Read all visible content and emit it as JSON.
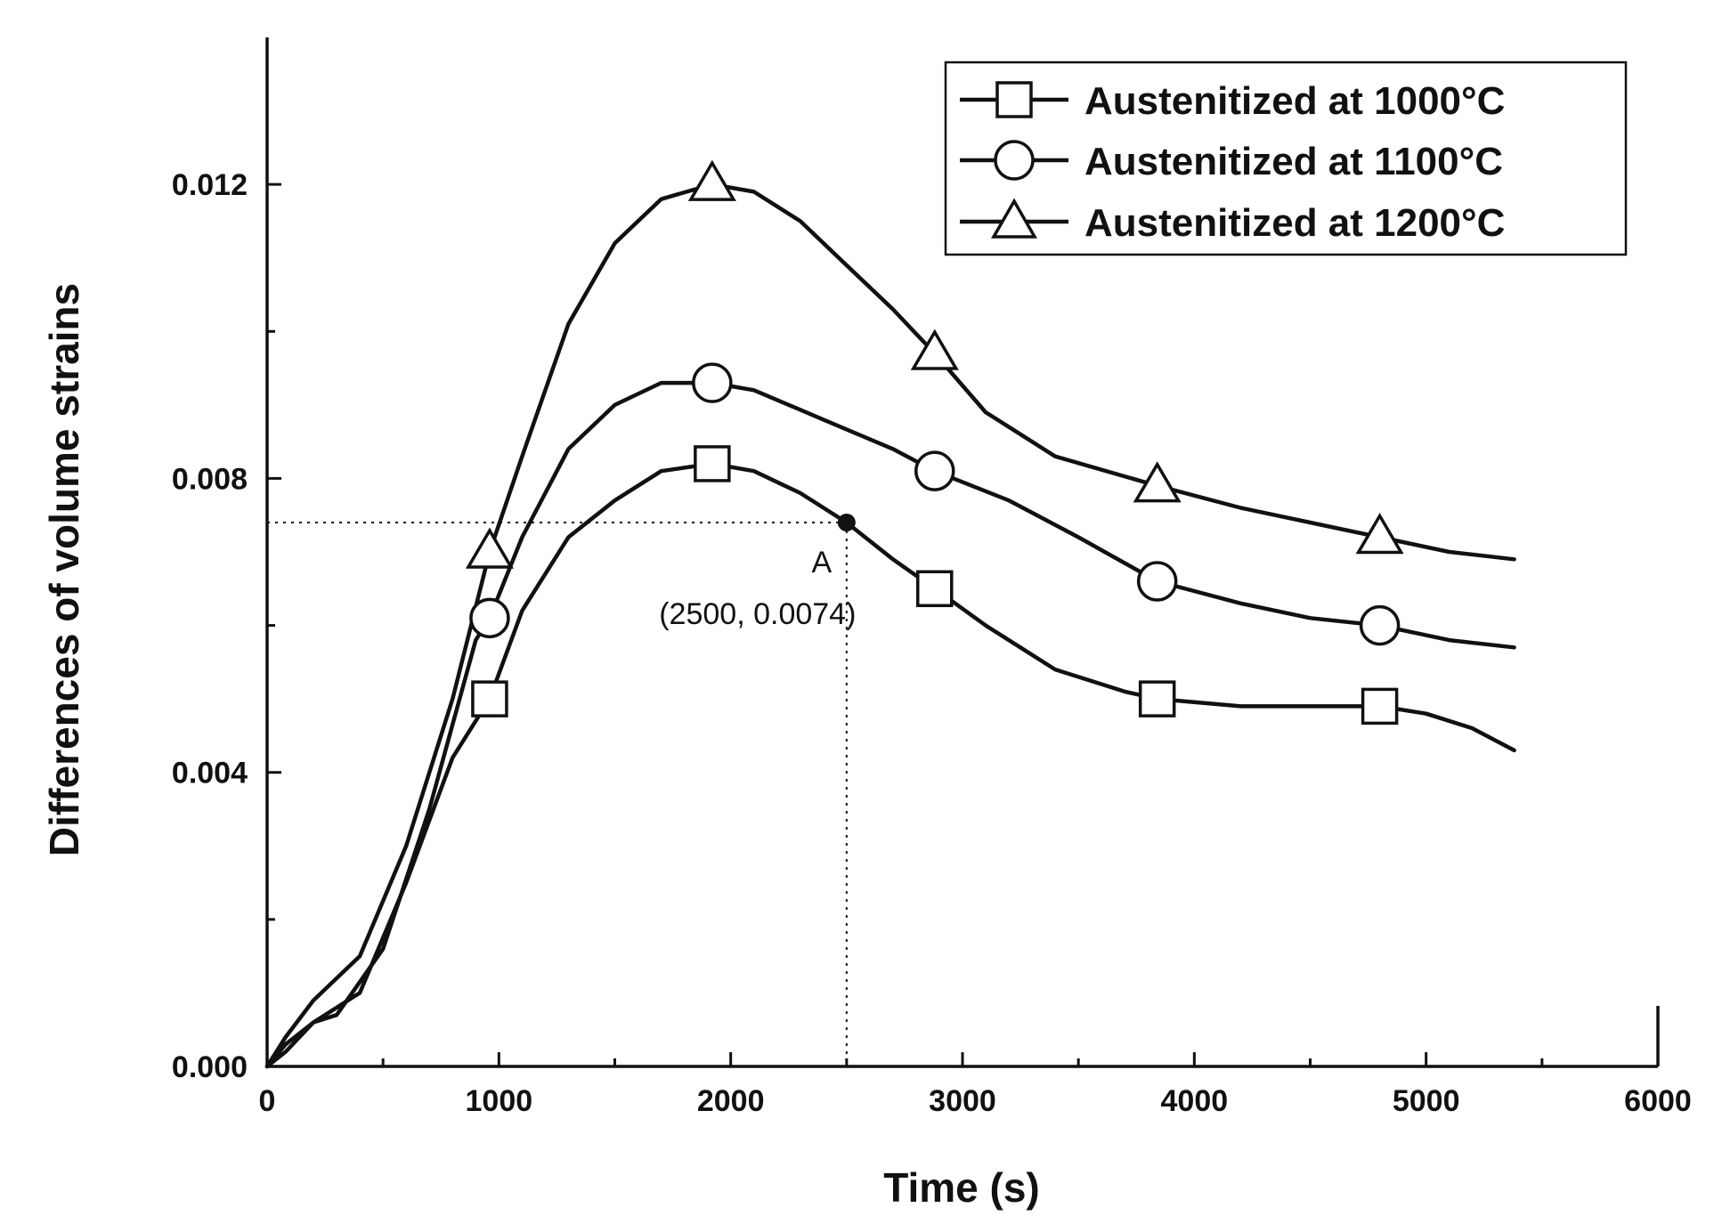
{
  "chart_data": {
    "type": "line",
    "title": "",
    "xlabel": "Time (s)",
    "ylabel": "Differences of volume strains",
    "xlim": [
      0,
      6000
    ],
    "ylim": [
      0,
      0.014
    ],
    "xticks": [
      0,
      1000,
      2000,
      3000,
      4000,
      5000,
      6000
    ],
    "xtick_labels": [
      "0",
      "1000",
      "2000",
      "3000",
      "4000",
      "5000",
      "6000"
    ],
    "yticks": [
      0.0,
      0.004,
      0.008,
      0.012
    ],
    "ytick_labels": [
      "0.000",
      "0.004",
      "0.008",
      "0.012"
    ],
    "legend_position": "top-right",
    "series": [
      {
        "name": "Austenitized at 1000°C",
        "marker": "square",
        "x": [
          0,
          80,
          200,
          400,
          600,
          800,
          960,
          1100,
          1300,
          1500,
          1700,
          1920,
          2100,
          2300,
          2500,
          2700,
          2880,
          3100,
          3400,
          3700,
          3840,
          4200,
          4500,
          4800,
          5000,
          5200,
          5380
        ],
        "y": [
          0.0,
          0.0002,
          0.0006,
          0.001,
          0.0025,
          0.0042,
          0.005,
          0.0062,
          0.0072,
          0.0077,
          0.0081,
          0.0082,
          0.0081,
          0.0078,
          0.0074,
          0.0069,
          0.0065,
          0.006,
          0.0054,
          0.0051,
          0.005,
          0.0049,
          0.0049,
          0.0049,
          0.0048,
          0.0046,
          0.0043
        ],
        "marker_x": [
          960,
          1920,
          2880,
          3840,
          4800
        ],
        "marker_y": [
          0.005,
          0.0082,
          0.0065,
          0.005,
          0.0049
        ]
      },
      {
        "name": "Austenitized at 1100°C",
        "marker": "circle",
        "x": [
          0,
          80,
          200,
          300,
          500,
          700,
          900,
          960,
          1100,
          1300,
          1500,
          1700,
          1920,
          2100,
          2400,
          2700,
          2880,
          3200,
          3500,
          3840,
          4200,
          4500,
          4800,
          5100,
          5380
        ],
        "y": [
          0.0,
          0.0003,
          0.0006,
          0.0007,
          0.0016,
          0.0035,
          0.0058,
          0.0061,
          0.0072,
          0.0084,
          0.009,
          0.0093,
          0.0093,
          0.0092,
          0.0088,
          0.0084,
          0.0081,
          0.0077,
          0.0072,
          0.0066,
          0.0063,
          0.0061,
          0.006,
          0.0058,
          0.0057
        ],
        "marker_x": [
          960,
          1920,
          2880,
          3840,
          4800
        ],
        "marker_y": [
          0.0061,
          0.0093,
          0.0081,
          0.0066,
          0.006
        ]
      },
      {
        "name": "Austenitized at 1200°C",
        "marker": "triangle",
        "x": [
          0,
          80,
          200,
          400,
          600,
          800,
          960,
          1100,
          1300,
          1500,
          1700,
          1920,
          2100,
          2300,
          2500,
          2700,
          2880,
          3100,
          3400,
          3840,
          4200,
          4500,
          4800,
          5100,
          5380
        ],
        "y": [
          0.0,
          0.0004,
          0.0009,
          0.0015,
          0.003,
          0.005,
          0.007,
          0.0083,
          0.0101,
          0.0112,
          0.0118,
          0.012,
          0.0119,
          0.0115,
          0.0109,
          0.0103,
          0.0097,
          0.0089,
          0.0083,
          0.0079,
          0.0076,
          0.0074,
          0.0072,
          0.007,
          0.0069
        ],
        "marker_x": [
          960,
          1920,
          2880,
          3840,
          4800
        ],
        "marker_y": [
          0.007,
          0.012,
          0.0097,
          0.0079,
          0.0072
        ]
      }
    ],
    "annotation": {
      "label": "A",
      "coords_text": "(2500, 0.0074)",
      "x": 2500,
      "y": 0.0074
    }
  }
}
